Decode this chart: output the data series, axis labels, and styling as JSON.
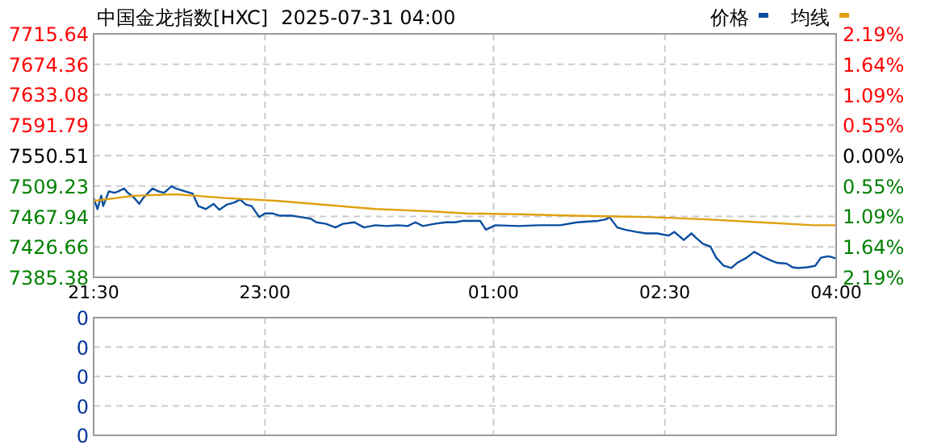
{
  "chart_data": [
    {
      "type": "line",
      "title": "中国金龙指数[HXC]",
      "subtitle": "2025-07-31 04:00",
      "legend": "top right",
      "grid": true,
      "tick_labels": true,
      "xlim": [
        "2025-07-30T21:30",
        "2025-07-31T04:00"
      ],
      "xticks": [
        {
          "value": "2025-07-30T21:30",
          "label": "21:30"
        },
        {
          "value": "2025-07-30T23:00",
          "label": "23:00"
        },
        {
          "value": "2025-07-31T01:00",
          "label": "01:00"
        },
        {
          "value": "2025-07-31T02:30",
          "label": "02:30"
        },
        {
          "value": "2025-07-31T04:00",
          "label": "04:00"
        }
      ],
      "ylim": [
        7385.38,
        7715.64
      ],
      "yticks": [
        7385.38,
        7426.66,
        7467.94,
        7509.23,
        7550.51,
        7591.79,
        7633.08,
        7674.36,
        7715.64
      ],
      "y2lim": [
        -2.19,
        2.19
      ],
      "y2ticks": [
        {
          "value": -2.19,
          "label": "2.19%"
        },
        {
          "value": -1.64,
          "label": "1.64%"
        },
        {
          "value": -1.09,
          "label": "1.09%"
        },
        {
          "value": -0.55,
          "label": "0.55%"
        },
        {
          "value": 0,
          "label": "0.00%"
        },
        {
          "value": 0.55,
          "label": "0.55%"
        },
        {
          "value": 1.09,
          "label": "1.09%"
        },
        {
          "value": 1.64,
          "label": "1.64%"
        },
        {
          "value": 2.19,
          "label": "2.19%"
        }
      ],
      "series": [
        {
          "name": "价格",
          "color": "#0a4ea0",
          "x": [
            "2025-07-30T21:30",
            "2025-07-30T21:32",
            "2025-07-30T21:34",
            "2025-07-30T21:35",
            "2025-07-30T21:38",
            "2025-07-30T21:41",
            "2025-07-30T21:43",
            "2025-07-30T21:46",
            "2025-07-30T21:48",
            "2025-07-30T21:51",
            "2025-07-30T21:54",
            "2025-07-30T21:56",
            "2025-07-30T22:01",
            "2025-07-30T22:04",
            "2025-07-30T22:07",
            "2025-07-30T22:11",
            "2025-07-30T22:13",
            "2025-07-30T22:18",
            "2025-07-30T22:22",
            "2025-07-30T22:25",
            "2025-07-30T22:29",
            "2025-07-30T22:33",
            "2025-07-30T22:36",
            "2025-07-30T22:40",
            "2025-07-30T22:44",
            "2025-07-30T22:47",
            "2025-07-30T22:50",
            "2025-07-30T22:53",
            "2025-07-30T22:57",
            "2025-07-30T23:00",
            "2025-07-30T23:04",
            "2025-07-30T23:08",
            "2025-07-30T23:14",
            "2025-07-30T23:19",
            "2025-07-30T23:24",
            "2025-07-30T23:27",
            "2025-07-30T23:32",
            "2025-07-30T23:37",
            "2025-07-30T23:41",
            "2025-07-30T23:47",
            "2025-07-30T23:52",
            "2025-07-30T23:58",
            "2025-07-31T00:04",
            "2025-07-31T00:10",
            "2025-07-31T00:15",
            "2025-07-31T00:19",
            "2025-07-31T00:23",
            "2025-07-31T00:29",
            "2025-07-31T00:35",
            "2025-07-31T00:40",
            "2025-07-31T00:44",
            "2025-07-31T00:53",
            "2025-07-31T00:56",
            "2025-07-31T01:01",
            "2025-07-31T01:13",
            "2025-07-31T01:24",
            "2025-07-31T01:35",
            "2025-07-31T01:44",
            "2025-07-31T01:55",
            "2025-07-31T01:59",
            "2025-07-31T02:01",
            "2025-07-31T02:05",
            "2025-07-31T02:09",
            "2025-07-31T02:15",
            "2025-07-31T02:20",
            "2025-07-31T02:26",
            "2025-07-31T02:32",
            "2025-07-31T02:35",
            "2025-07-31T02:40",
            "2025-07-31T02:44",
            "2025-07-31T02:46",
            "2025-07-31T02:50",
            "2025-07-31T02:54",
            "2025-07-31T02:57",
            "2025-07-31T03:01",
            "2025-07-31T03:05",
            "2025-07-31T03:08",
            "2025-07-31T03:13",
            "2025-07-31T03:17",
            "2025-07-31T03:21",
            "2025-07-31T03:25",
            "2025-07-31T03:29",
            "2025-07-31T03:34",
            "2025-07-31T03:37",
            "2025-07-31T03:40",
            "2025-07-31T03:45",
            "2025-07-31T03:49",
            "2025-07-31T03:52",
            "2025-07-31T03:56",
            "2025-07-31T04:00"
          ],
          "values": [
            7493,
            7478,
            7496,
            7482,
            7502,
            7500,
            7502,
            7506,
            7500,
            7494,
            7485,
            7493,
            7506,
            7502,
            7500,
            7509,
            7506,
            7502,
            7499,
            7482,
            7478,
            7485,
            7477,
            7484,
            7487,
            7491,
            7484,
            7482,
            7467,
            7472,
            7472,
            7469,
            7469,
            7467,
            7465,
            7460,
            7458,
            7453,
            7458,
            7460,
            7453,
            7456,
            7455,
            7456,
            7455,
            7460,
            7455,
            7458,
            7460,
            7460,
            7462,
            7462,
            7450,
            7456,
            7455,
            7456,
            7456,
            7460,
            7462,
            7464,
            7467,
            7453,
            7450,
            7447,
            7445,
            7445,
            7442,
            7447,
            7436,
            7445,
            7440,
            7431,
            7427,
            7412,
            7401,
            7398,
            7405,
            7412,
            7420,
            7414,
            7409,
            7405,
            7404,
            7399,
            7398,
            7399,
            7401,
            7412,
            7414,
            7411
          ]
        },
        {
          "name": "均线",
          "color": "#e0a010",
          "x": [
            "2025-07-30T21:30",
            "2025-07-30T21:51",
            "2025-07-30T22:13",
            "2025-07-30T22:39",
            "2025-07-30T23:07",
            "2025-07-30T23:30",
            "2025-07-30T23:58",
            "2025-07-31T00:26",
            "2025-07-31T00:46",
            "2025-07-31T01:13",
            "2025-07-31T01:41",
            "2025-07-31T02:23",
            "2025-07-31T02:52",
            "2025-07-31T03:20",
            "2025-07-31T03:48",
            "2025-07-31T04:00"
          ],
          "values": [
            7489,
            7496,
            7498,
            7493,
            7489,
            7484,
            7478,
            7475,
            7472,
            7471,
            7469,
            7467,
            7464,
            7460,
            7456,
            7456
          ]
        }
      ]
    },
    {
      "type": "bar",
      "grid": true,
      "tick_labels": "y",
      "xlim": [
        "2025-07-30T21:30",
        "2025-07-31T04:00"
      ],
      "xticks": [
        "2025-07-30T21:30",
        "2025-07-30T23:00",
        "2025-07-31T01:00",
        "2025-07-31T02:30",
        "2025-07-31T04:00"
      ],
      "ylim": [
        0,
        0.4
      ],
      "yticks": [
        {
          "value": 0,
          "label": "0"
        },
        {
          "value": 0.1,
          "label": "0"
        },
        {
          "value": 0.2,
          "label": "0"
        },
        {
          "value": 0.3,
          "label": "0"
        },
        {
          "value": 0.4,
          "label": "0"
        }
      ]
    }
  ]
}
